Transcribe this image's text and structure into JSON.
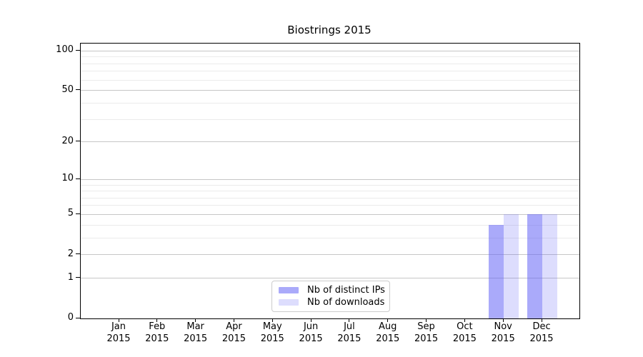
{
  "figure": {
    "title": "Biostrings 2015"
  },
  "colors": {
    "bar_distinct_ips": "#6464f58c",
    "bar_downloads": "#6464f538",
    "major_grid": "#c6c6c6",
    "minor_grid": "#ebebeb",
    "spine": "#000000",
    "legend_border": "#cccccc"
  },
  "chart_data": {
    "type": "bar",
    "title": "Biostrings 2015",
    "categories": [
      {
        "month": "Jan",
        "year": "2015"
      },
      {
        "month": "Feb",
        "year": "2015"
      },
      {
        "month": "Mar",
        "year": "2015"
      },
      {
        "month": "Apr",
        "year": "2015"
      },
      {
        "month": "May",
        "year": "2015"
      },
      {
        "month": "Jun",
        "year": "2015"
      },
      {
        "month": "Jul",
        "year": "2015"
      },
      {
        "month": "Aug",
        "year": "2015"
      },
      {
        "month": "Sep",
        "year": "2015"
      },
      {
        "month": "Oct",
        "year": "2015"
      },
      {
        "month": "Nov",
        "year": "2015"
      },
      {
        "month": "Dec",
        "year": "2015"
      }
    ],
    "series": [
      {
        "name": "Nb of distinct IPs",
        "fill": "#6464f58c",
        "values": [
          0,
          0,
          0,
          0,
          0,
          0,
          0,
          0,
          0,
          0,
          4,
          5
        ]
      },
      {
        "name": "Nb of downloads",
        "fill": "#6464f538",
        "values": [
          0,
          0,
          0,
          0,
          0,
          0,
          0,
          0,
          0,
          0,
          5,
          5
        ]
      }
    ],
    "y_axis": {
      "scale": "log10(1+value)",
      "major_ticks": [
        0,
        1,
        2,
        5,
        10,
        20,
        50,
        100
      ],
      "minor_gridlines": [
        3,
        4,
        6,
        7,
        8,
        9,
        30,
        40,
        60,
        70,
        80,
        90
      ],
      "range_top_value": 113
    },
    "x_axis": {
      "label_line2": "2015"
    },
    "legend_position": "lower center",
    "grid": true
  }
}
